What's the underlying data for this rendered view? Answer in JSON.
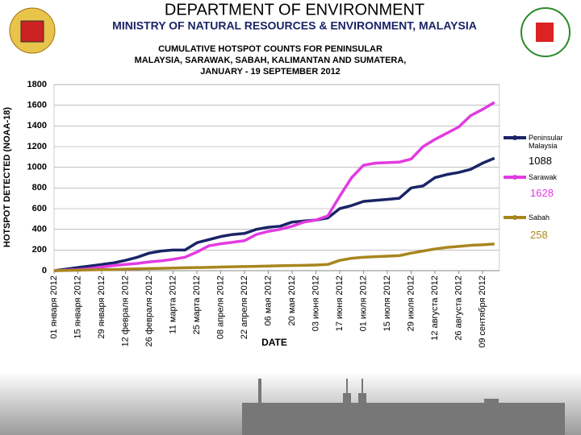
{
  "header": {
    "title": "DEPARTMENT OF ENVIRONMENT",
    "subtitle": "MINISTRY OF NATURAL RESOURCES & ENVIRONMENT, MALAYSIA"
  },
  "chart_data": {
    "type": "line",
    "title": "CUMULATIVE HOTSPOT COUNTS FOR PENINSULAR MALAYSIA, SARAWAK, SABAH, KALIMANTAN AND SUMATERA, JANUARY -  19 SEPTEMBER 2012",
    "x_label": "DATE",
    "y_label": "HOTSPOT DETECTED (NOAA-18)",
    "categories": [
      "01 января 2012",
      null,
      "15 января 2012",
      null,
      "29 января 2012",
      null,
      "12 февраля 2012",
      null,
      "26 февраля 2012",
      null,
      "11 марта 2012",
      null,
      "25 марта 2012",
      null,
      "08 апреля 2012",
      null,
      "22 апреля 2012",
      null,
      "06 мая 2012",
      null,
      "20 мая 2012",
      null,
      "03 июня 2012",
      null,
      "17 июня 2012",
      null,
      "01 июля 2012",
      null,
      "15 июля 2012",
      null,
      "29 июля 2012",
      null,
      "12 августа 2012",
      null,
      "26 августа 2012",
      null,
      "09 сентября 2012",
      null
    ],
    "ylim": [
      0,
      1800
    ],
    "yticks": [
      0,
      200,
      400,
      600,
      800,
      1000,
      1200,
      1400,
      1600,
      1800
    ],
    "series": [
      {
        "name": "Peninsular Malaysia",
        "color": "#1a2466",
        "values": [
          0,
          15,
          30,
          45,
          60,
          75,
          100,
          130,
          170,
          190,
          200,
          200,
          270,
          300,
          330,
          350,
          360,
          400,
          420,
          430,
          470,
          480,
          490,
          510,
          600,
          630,
          670,
          680,
          690,
          700,
          800,
          820,
          900,
          930,
          950,
          980,
          1040,
          1088
        ]
      },
      {
        "name": "Sarawak",
        "color": "#e23be2",
        "values": [
          0,
          5,
          10,
          20,
          35,
          50,
          60,
          70,
          85,
          95,
          110,
          130,
          180,
          240,
          260,
          275,
          290,
          350,
          380,
          400,
          430,
          470,
          490,
          530,
          720,
          900,
          1020,
          1040,
          1045,
          1050,
          1080,
          1200,
          1270,
          1330,
          1390,
          1500,
          1560,
          1628
        ]
      },
      {
        "name": "Sabah",
        "color": "#a8861e",
        "values": [
          0,
          2,
          5,
          8,
          10,
          12,
          15,
          18,
          20,
          22,
          25,
          28,
          30,
          32,
          35,
          38,
          40,
          42,
          45,
          48,
          50,
          52,
          55,
          60,
          100,
          120,
          130,
          135,
          140,
          145,
          170,
          190,
          210,
          225,
          235,
          245,
          250,
          258
        ]
      }
    ]
  }
}
